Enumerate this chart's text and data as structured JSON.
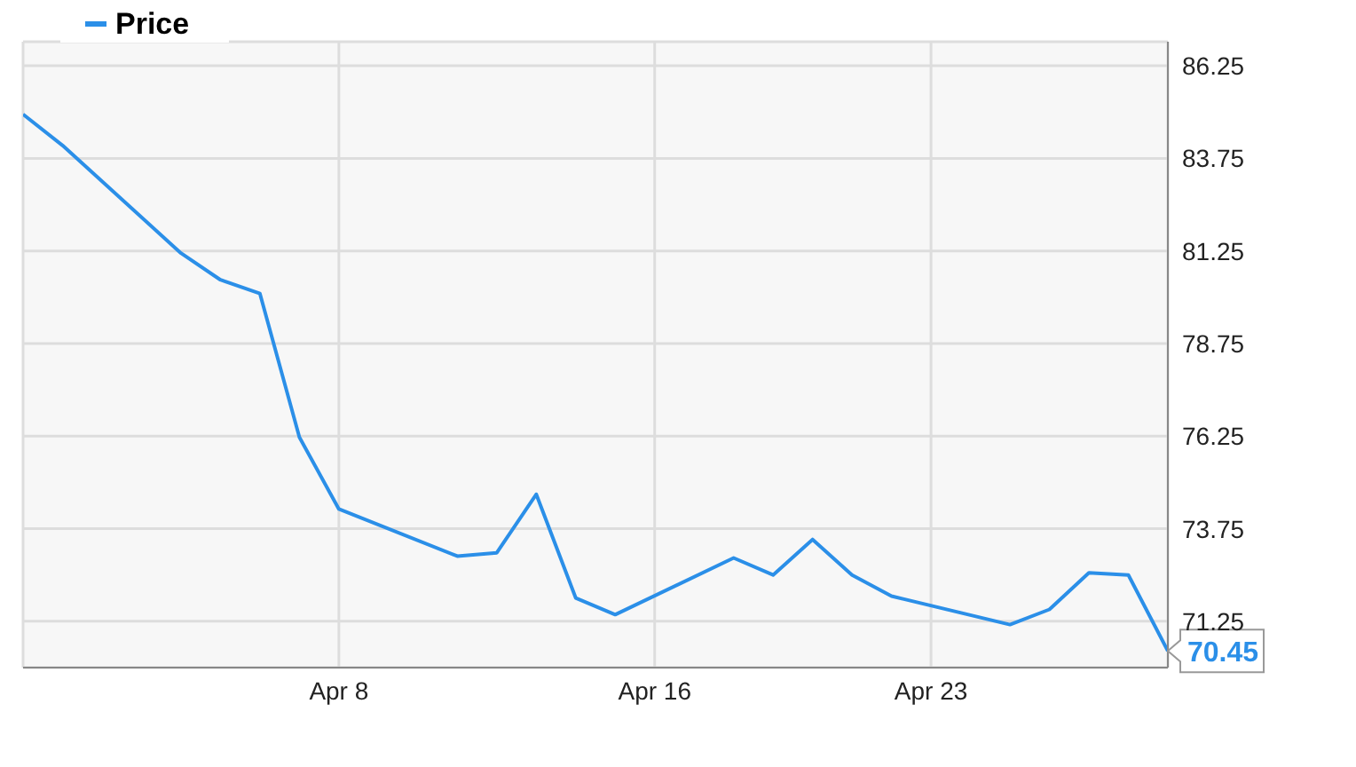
{
  "chart_data": {
    "type": "line",
    "x": [
      "--03-31",
      "--04-01",
      "--04-04",
      "--04-05",
      "--04-06",
      "--04-07",
      "--04-08",
      "--04-11",
      "--04-12",
      "--04-13",
      "--04-14",
      "--04-15",
      "--04-18",
      "--04-19",
      "--04-20",
      "--04-21",
      "--04-22",
      "--04-25",
      "--04-26",
      "--04-27",
      "--04-28",
      "--04-29"
    ],
    "series": [
      {
        "name": "Price",
        "color": "#2b8fe8",
        "values": [
          84.94,
          84.1,
          81.19,
          80.47,
          80.1,
          76.22,
          74.28,
          73.01,
          73.1,
          74.68,
          71.88,
          71.43,
          72.96,
          72.5,
          73.46,
          72.5,
          71.93,
          71.16,
          71.57,
          72.56,
          72.5,
          70.45
        ]
      }
    ],
    "xlim": [
      "--03-31",
      "--04-29"
    ],
    "xticks": [
      {
        "value": "--04-08",
        "label": "Apr 8"
      },
      {
        "value": "--04-16",
        "label": "Apr 16"
      },
      {
        "value": "--04-23",
        "label": "Apr 23"
      }
    ],
    "ylim": [
      70,
      86.9
    ],
    "yticks": [
      71.25,
      73.75,
      76.25,
      78.75,
      81.25,
      83.75,
      86.25
    ],
    "grid": true,
    "legend": "top left",
    "marker": "none",
    "line_style": "solid",
    "annotations": [
      {
        "text": "70.45",
        "x": "--04-29",
        "y": 70.45
      }
    ]
  }
}
